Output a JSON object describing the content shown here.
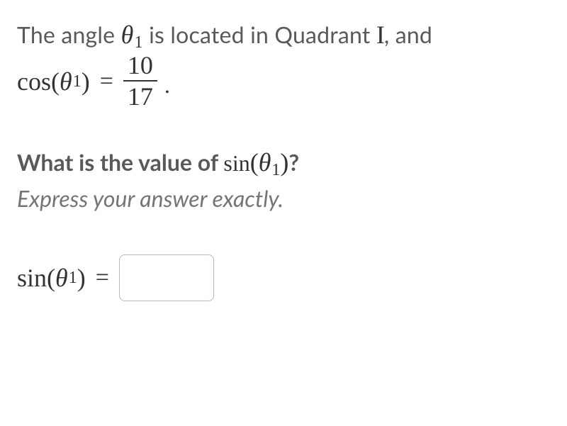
{
  "problem": {
    "intro_prefix": "The angle ",
    "theta": "θ",
    "sub": "1",
    "intro_mid": " is located in Quadrant ",
    "quadrant": "I",
    "intro_suffix": ", and",
    "func_cos": "cos",
    "lparen": "(",
    "rparen": ")",
    "equals": "=",
    "numerator": "10",
    "denominator": "17",
    "period": "."
  },
  "question": {
    "prefix": "What is the value of ",
    "func_sin": "sin",
    "theta": "θ",
    "sub": "1",
    "lparen": "(",
    "rparen": ")",
    "qmark": "?"
  },
  "hint": "Express your answer exactly.",
  "answer": {
    "func_sin": "sin",
    "theta": "θ",
    "sub": "1",
    "lparen": "(",
    "rparen": ")",
    "equals": "=",
    "value": ""
  },
  "style": {
    "body_text_color": "#595959",
    "math_color": "#333333",
    "hint_color": "#757575",
    "input_border": "#b8b8b8",
    "background": "#ffffff",
    "body_fontsize": 32,
    "math_fontsize": 36,
    "sub_fontsize": 24,
    "input_width": 134,
    "input_height": 66,
    "input_radius": 8
  }
}
